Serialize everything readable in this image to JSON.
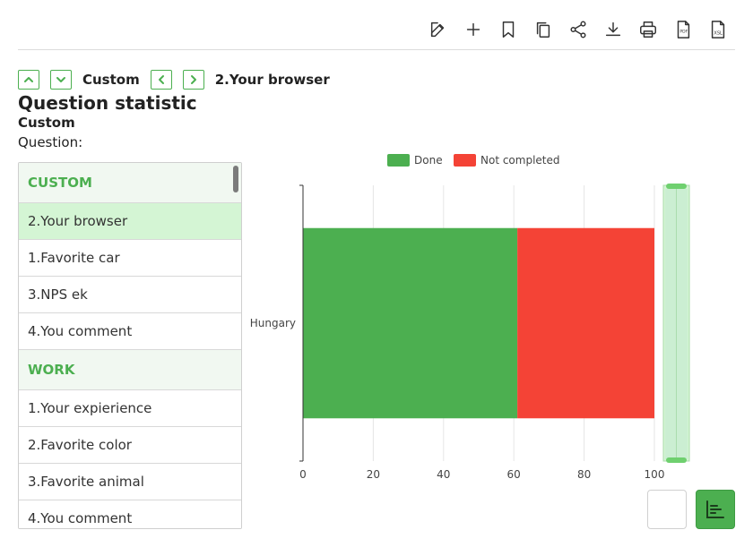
{
  "toolbar": {
    "icons": [
      "edit-icon",
      "plus-icon",
      "bookmark-icon",
      "copy-icon",
      "share-icon",
      "download-icon",
      "print-icon",
      "pdf-icon",
      "xsl-icon"
    ]
  },
  "nav": {
    "category_label": "Custom",
    "question_label": "2.Your browser"
  },
  "page": {
    "title": "Question statistic",
    "subtitle": "Custom",
    "question_label": "Question:"
  },
  "list": {
    "groups": [
      {
        "header": "CUSTOM",
        "items": [
          "2.Your browser",
          "1.Favorite car",
          "3.NPS ek",
          "4.You comment"
        ]
      },
      {
        "header": "WORK",
        "items": [
          "1.Your expierience",
          "2.Favorite color",
          "3.Favorite animal",
          "4.You comment"
        ]
      }
    ],
    "active_item": "2.Your browser"
  },
  "colors": {
    "accent": "#4caf50",
    "done": "#4caf50",
    "not_completed": "#f44336",
    "active_row": "#d4f5d4"
  },
  "chart_data": {
    "type": "bar",
    "orientation": "horizontal",
    "stacked": true,
    "categories": [
      "Hungary"
    ],
    "series": [
      {
        "name": "Done",
        "values": [
          61
        ],
        "color": "#4caf50"
      },
      {
        "name": "Not completed",
        "values": [
          39
        ],
        "color": "#f44336"
      }
    ],
    "xlim": [
      0,
      100
    ],
    "xticks": [
      "0",
      "20",
      "40",
      "60",
      "80",
      "100"
    ],
    "grid": true,
    "legend": "top",
    "zoom_slider": true
  }
}
